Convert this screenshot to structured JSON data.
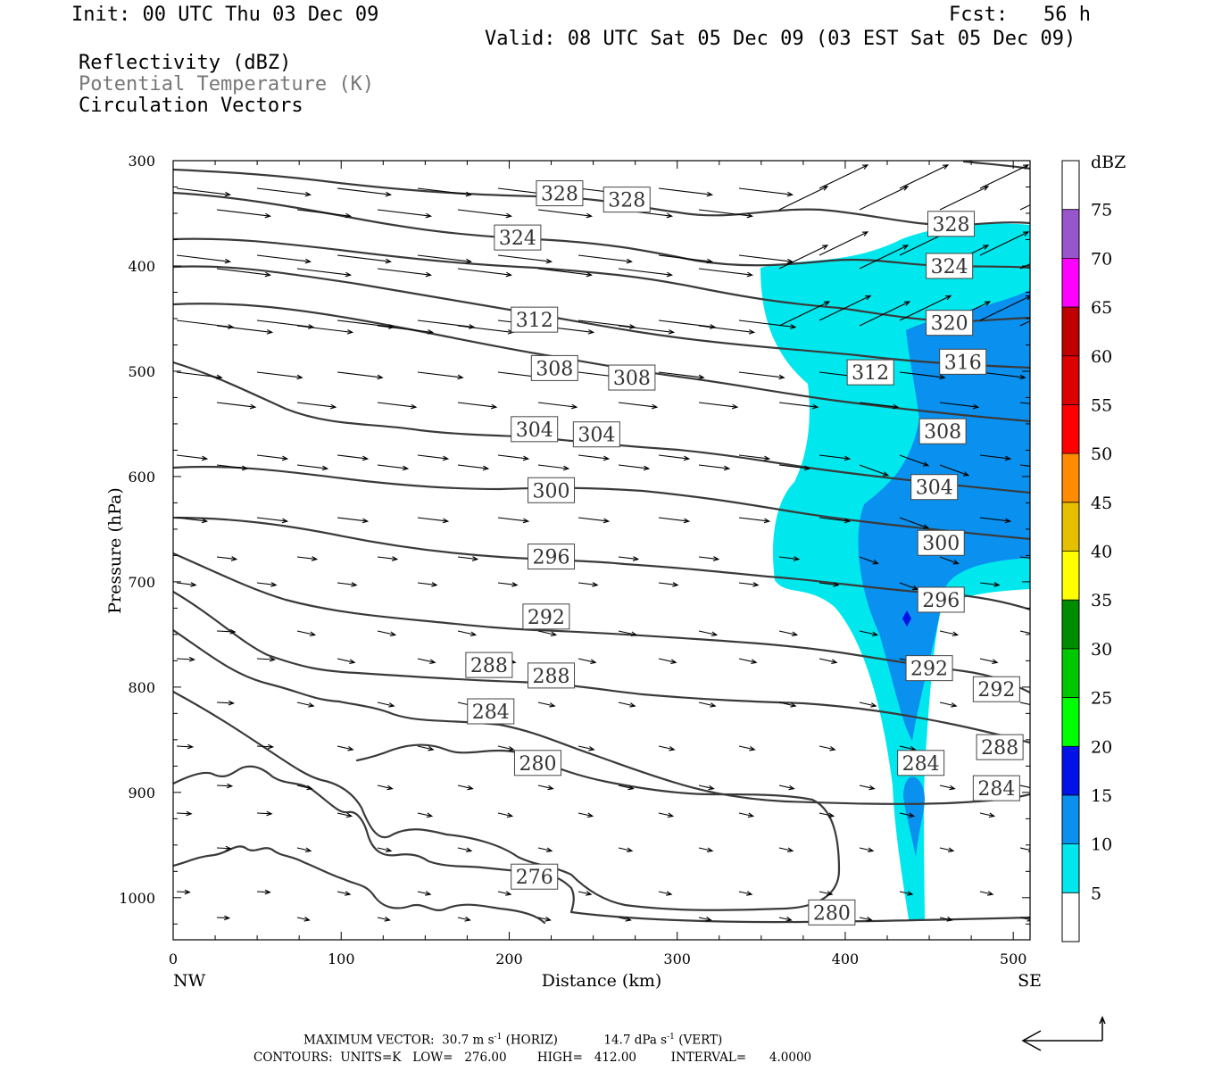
{
  "header": {
    "init": "Init: 00 UTC Thu 03 Dec 09",
    "fcst": "Fcst:   56 h",
    "valid": "Valid: 08 UTC Sat 05 Dec 09 (03 EST Sat 05 Dec 09)",
    "fields": [
      "Reflectivity (dBZ)",
      "Potential Temperature (K)",
      "Circulation Vectors"
    ]
  },
  "footer": {
    "max_vector_label": "MAXIMUM VECTOR:",
    "horiz_value": "30.7 m s",
    "horiz_tag": "(HORIZ)",
    "vert_value": "14.7 dPa s",
    "vert_tag": "(VERT)",
    "exponent": "-1",
    "contours": "CONTOURS:  UNITS=K   LOW=   276.00        HIGH=   412.00         INTERVAL=      4.0000"
  },
  "colors": {
    "cyan": "#00e8ee",
    "blue": "#0a90ee",
    "deep_blue": "#0012e6",
    "contour": "#3a3a3a"
  },
  "chart_data": {
    "type": "cross-section",
    "xlabel": "Distance (km)",
    "ylabel": "Pressure (hPa)",
    "xlim": [
      0,
      510
    ],
    "ylim": [
      1040,
      300
    ],
    "x_ticks": [
      0,
      100,
      200,
      300,
      400,
      500
    ],
    "y_ticks": [
      300,
      400,
      500,
      600,
      700,
      800,
      900,
      1000
    ],
    "x_end_labels": {
      "left": "NW",
      "right": "SE"
    },
    "colorbar": {
      "unit": "dBZ",
      "levels": [
        5,
        10,
        15,
        20,
        25,
        30,
        35,
        40,
        45,
        50,
        55,
        60,
        65,
        70,
        75
      ],
      "colors": [
        "#ffffff",
        "#00e8ee",
        "#0a90ee",
        "#0012e6",
        "#00ff00",
        "#00c800",
        "#008c00",
        "#ffff00",
        "#e6c000",
        "#ff8c00",
        "#ff0000",
        "#dd0000",
        "#c00000",
        "#ff00ff",
        "#9955cc",
        "#ffffff"
      ]
    },
    "contour_labels": [
      {
        "value": "328",
        "x": 230,
        "p": 331
      },
      {
        "value": "328",
        "x": 270,
        "p": 337
      },
      {
        "value": "328",
        "x": 463,
        "p": 360
      },
      {
        "value": "324",
        "x": 205,
        "p": 373
      },
      {
        "value": "324",
        "x": 462,
        "p": 400
      },
      {
        "value": "320",
        "x": 462,
        "p": 454
      },
      {
        "value": "316",
        "x": 470,
        "p": 491
      },
      {
        "value": "312",
        "x": 215,
        "p": 451
      },
      {
        "value": "312",
        "x": 415,
        "p": 501
      },
      {
        "value": "308",
        "x": 227,
        "p": 497
      },
      {
        "value": "308",
        "x": 273,
        "p": 506
      },
      {
        "value": "308",
        "x": 458,
        "p": 557
      },
      {
        "value": "304",
        "x": 215,
        "p": 555
      },
      {
        "value": "304",
        "x": 252,
        "p": 560
      },
      {
        "value": "304",
        "x": 453,
        "p": 610
      },
      {
        "value": "300",
        "x": 225,
        "p": 613
      },
      {
        "value": "300",
        "x": 457,
        "p": 663
      },
      {
        "value": "296",
        "x": 225,
        "p": 676
      },
      {
        "value": "296",
        "x": 457,
        "p": 717
      },
      {
        "value": "292",
        "x": 222,
        "p": 733
      },
      {
        "value": "292",
        "x": 450,
        "p": 782
      },
      {
        "value": "292",
        "x": 490,
        "p": 802
      },
      {
        "value": "288",
        "x": 188,
        "p": 779
      },
      {
        "value": "288",
        "x": 225,
        "p": 789
      },
      {
        "value": "288",
        "x": 492,
        "p": 857
      },
      {
        "value": "284",
        "x": 189,
        "p": 823
      },
      {
        "value": "284",
        "x": 445,
        "p": 872
      },
      {
        "value": "284",
        "x": 490,
        "p": 896
      },
      {
        "value": "280",
        "x": 217,
        "p": 872
      },
      {
        "value": "280",
        "x": 392,
        "p": 1014
      },
      {
        "value": "276",
        "x": 215,
        "p": 980
      }
    ]
  }
}
